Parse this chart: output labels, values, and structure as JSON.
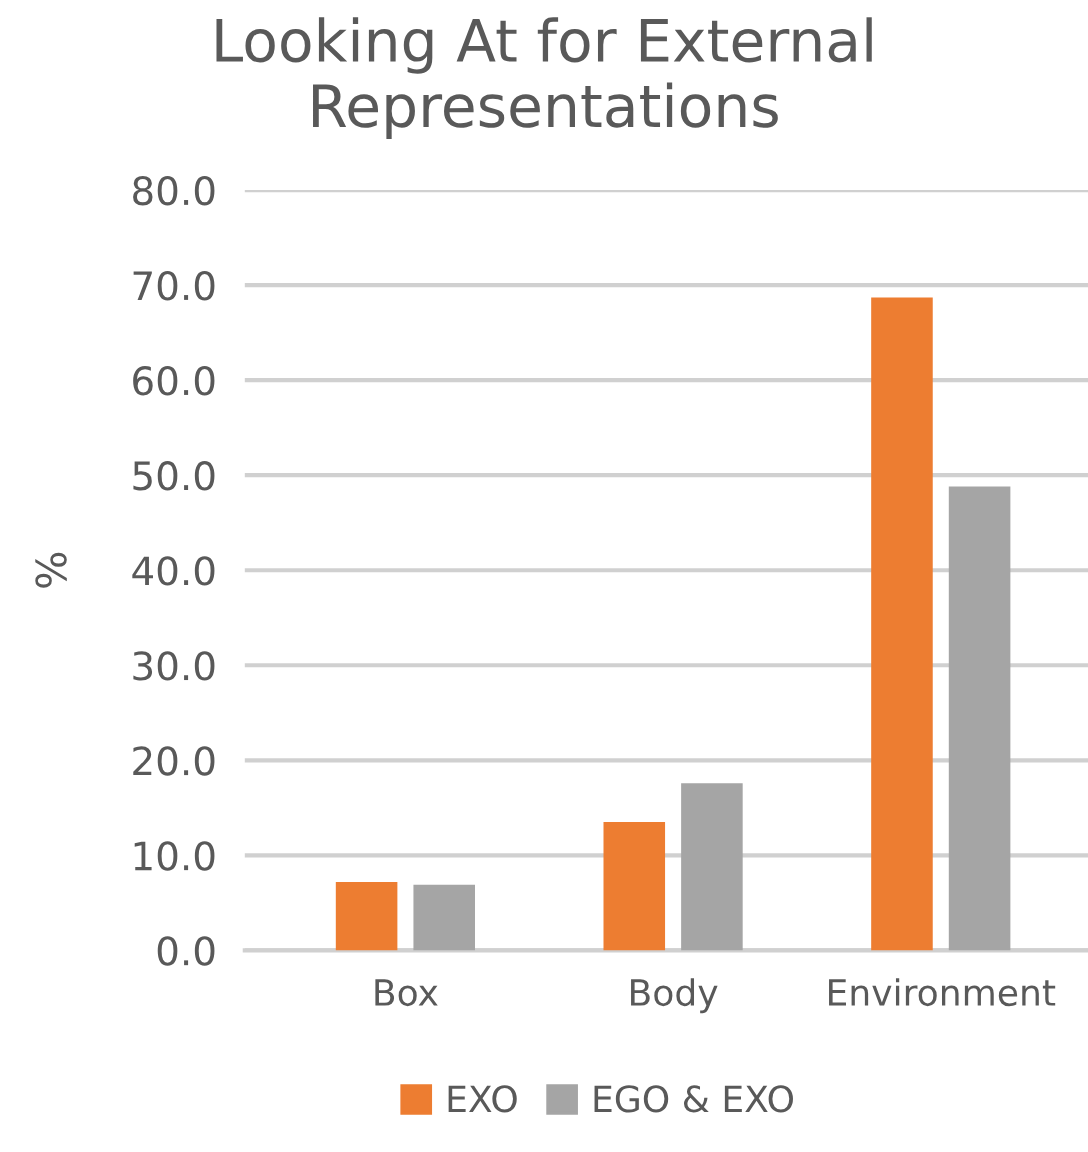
{
  "chart_data": {
    "type": "bar",
    "title": "Looking At for External Representations",
    "ylabel": "%",
    "categories": [
      "Box",
      "Body",
      "Environment"
    ],
    "series": [
      {
        "name": "EXO",
        "color": "#ed7d31",
        "values": [
          7.2,
          13.5,
          68.7
        ]
      },
      {
        "name": "EGO & EXO",
        "color": "#a5a5a5",
        "values": [
          6.9,
          17.6,
          48.8
        ]
      }
    ],
    "ylim": [
      0,
      80
    ],
    "yticks": [
      {
        "value": 0,
        "label": "0.0"
      },
      {
        "value": 10,
        "label": "10.0"
      },
      {
        "value": 20,
        "label": "20.0"
      },
      {
        "value": 30,
        "label": "30.0"
      },
      {
        "value": 40,
        "label": "40.0"
      },
      {
        "value": 50,
        "label": "50.0"
      },
      {
        "value": 60,
        "label": "60.0"
      },
      {
        "value": 70,
        "label": "70.0"
      },
      {
        "value": 80,
        "label": "80.0"
      }
    ],
    "grid": "y",
    "legend": "bottom"
  }
}
